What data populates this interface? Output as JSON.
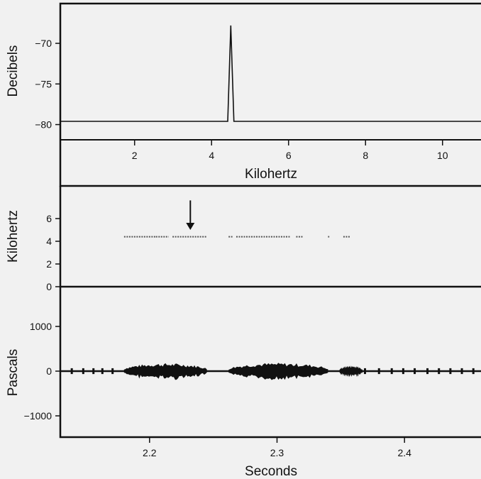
{
  "chart_data": [
    {
      "type": "line",
      "panel": "spectrum",
      "ylabel": "Decibels",
      "xlabel": "Kilohertz",
      "yticks": [
        -80,
        -75,
        -70
      ],
      "ytick_labels": [
        "−80",
        "−75",
        "−70"
      ],
      "xticks": [
        2,
        4,
        6,
        8,
        10
      ],
      "xtick_labels": [
        "2",
        "4",
        "6",
        "8",
        "10"
      ],
      "xlim": [
        0.07,
        11
      ],
      "ylim": [
        -81.7,
        -65.1
      ],
      "x": [
        0.07,
        4.42,
        4.5,
        4.58,
        11
      ],
      "y": [
        -79.6,
        -79.6,
        -67.8,
        -79.6,
        -79.6
      ],
      "grid": false
    },
    {
      "type": "scatter",
      "panel": "spectrogram",
      "ylabel": "Kilohertz",
      "yticks": [
        0,
        2,
        4,
        6
      ],
      "ytick_labels": [
        "0",
        "2",
        "4",
        "6"
      ],
      "ylim": [
        0,
        7
      ],
      "xlim": [
        2.13,
        2.46
      ],
      "segments": [
        {
          "start": 2.18,
          "end": 2.205,
          "freq": 4.4
        },
        {
          "start": 2.205,
          "end": 2.215,
          "freq": 4.4
        },
        {
          "start": 2.218,
          "end": 2.245,
          "freq": 4.4
        },
        {
          "start": 2.262,
          "end": 2.265,
          "freq": 4.4
        },
        {
          "start": 2.268,
          "end": 2.31,
          "freq": 4.4
        },
        {
          "start": 2.315,
          "end": 2.32,
          "freq": 4.4
        },
        {
          "start": 2.34,
          "end": 2.341,
          "freq": 4.4
        },
        {
          "start": 2.352,
          "end": 2.357,
          "freq": 4.4
        }
      ],
      "arrow": {
        "x": 2.232,
        "from_khz": 7.6,
        "to_khz": 5.0
      }
    },
    {
      "type": "area",
      "panel": "waveform",
      "ylabel": "Pascals",
      "xlabel": "Seconds",
      "yticks": [
        -1000,
        0,
        1000
      ],
      "ytick_labels": [
        "−1000",
        "0",
        "1000"
      ],
      "xticks": [
        2.2,
        2.3,
        2.4
      ],
      "xtick_labels": [
        "2.2",
        "2.3",
        "2.4"
      ],
      "xlim": [
        2.13,
        2.46
      ],
      "ylim": [
        -1400,
        1300
      ],
      "bursts": [
        {
          "start": 2.18,
          "end": 2.245,
          "amplitude": 180
        },
        {
          "start": 2.262,
          "end": 2.34,
          "amplitude": 190
        },
        {
          "start": 2.349,
          "end": 2.367,
          "amplitude": 130
        }
      ],
      "baseline_ticks": [
        2.139,
        2.148,
        2.156,
        2.163,
        2.171,
        2.369,
        2.38,
        2.39,
        2.399,
        2.408,
        2.418,
        2.427,
        2.436,
        2.445,
        2.454
      ],
      "tick_amplitude": 65
    }
  ]
}
